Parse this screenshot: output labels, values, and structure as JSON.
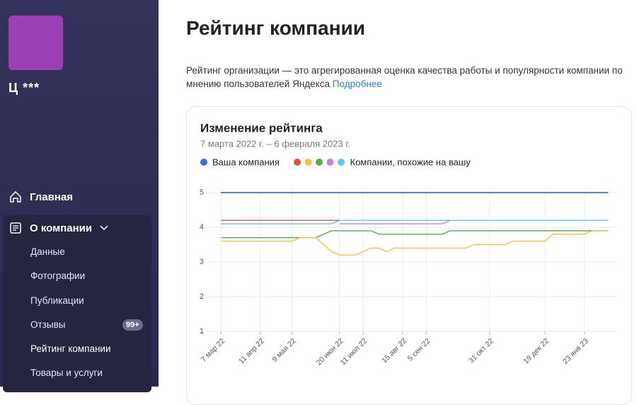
{
  "sidebar": {
    "company_name": "Ц ***",
    "nav": [
      "Главная",
      "О компании"
    ],
    "subnav": [
      "Данные",
      "Фотографии",
      "Публикации",
      "Отзывы",
      "Рейтинг компании",
      "Товары и услуги"
    ],
    "reviews_badge": "99+"
  },
  "header": {
    "title": "Рейтинг компании",
    "description": "Рейтинг организации — это агрегированная оценка качества работы и популярности компании по мнению пользователей Яндекса",
    "link": "Подробнее"
  },
  "chart_data": {
    "type": "line",
    "title": "Изменение рейтинга",
    "subtitle": "7 марта 2022 г. – 6 февраля 2023 г.",
    "similar_label": "Компании, похожие на вашу",
    "categories": [
      "7 мар 22",
      null,
      null,
      null,
      null,
      "11 апр 22",
      null,
      null,
      null,
      "9 мая 22",
      null,
      null,
      null,
      null,
      null,
      "20 июн 22",
      null,
      null,
      "11 июл 22",
      null,
      null,
      null,
      null,
      "15 авг 22",
      null,
      null,
      "5 сен 22",
      null,
      null,
      null,
      null,
      null,
      null,
      null,
      "31 окт 22",
      null,
      null,
      null,
      null,
      null,
      null,
      "19 дек 22",
      null,
      null,
      null,
      null,
      "23 янв 23",
      null,
      null,
      null
    ],
    "ylim": [
      1,
      5
    ],
    "yticks": [
      1,
      2,
      3,
      4,
      5
    ],
    "grid": true,
    "series": [
      {
        "name": "Ваша компания",
        "color": "#3b6fe0",
        "values": [
          5,
          5,
          5,
          5,
          5,
          5,
          5,
          5,
          5,
          5,
          5,
          5,
          5,
          5,
          5,
          5,
          5,
          5,
          5,
          5,
          5,
          5,
          5,
          5,
          5,
          5,
          5,
          5,
          5,
          5,
          5,
          5,
          5,
          5,
          5,
          5,
          5,
          5,
          5,
          5,
          5,
          5,
          5,
          5,
          5,
          5,
          5,
          5,
          5,
          5
        ]
      },
      {
        "color": "#e0504a",
        "values": [
          4.2,
          4.2,
          4.2,
          4.2,
          4.2,
          4.2,
          4.2,
          4.2,
          4.2,
          4.2,
          4.2,
          4.2,
          4.2,
          4.2,
          4.2,
          4.2,
          null,
          null,
          null,
          null,
          null,
          null,
          null,
          null,
          null,
          null,
          null,
          null,
          null,
          null,
          null,
          null,
          null,
          null,
          null,
          null,
          null,
          null,
          null,
          null,
          null,
          null,
          null,
          null,
          null,
          null,
          null,
          null,
          null,
          null
        ]
      },
      {
        "color": "#f5c242",
        "values": [
          3.6,
          3.6,
          3.6,
          3.6,
          3.6,
          3.6,
          3.6,
          3.6,
          3.6,
          3.6,
          3.7,
          3.7,
          3.7,
          3.5,
          3.3,
          3.2,
          3.2,
          3.2,
          3.3,
          3.4,
          3.4,
          3.3,
          3.4,
          3.4,
          3.4,
          3.4,
          3.4,
          3.4,
          3.4,
          3.4,
          3.4,
          3.4,
          3.5,
          3.5,
          3.5,
          3.5,
          3.5,
          3.6,
          3.6,
          3.6,
          3.6,
          3.6,
          3.8,
          3.8,
          3.8,
          3.8,
          3.8,
          3.9,
          3.9,
          3.9
        ]
      },
      {
        "color": "#4caf50",
        "values": [
          3.7,
          3.7,
          3.7,
          3.7,
          3.7,
          3.7,
          3.7,
          3.7,
          3.7,
          3.7,
          3.7,
          3.7,
          3.7,
          3.8,
          3.9,
          3.9,
          3.9,
          3.9,
          3.9,
          3.9,
          3.8,
          3.8,
          3.8,
          3.8,
          3.8,
          3.8,
          3.8,
          3.8,
          3.8,
          3.9,
          3.9,
          3.9,
          3.9,
          3.9,
          3.9,
          3.9,
          3.9,
          3.9,
          3.9,
          3.9,
          3.9,
          3.9,
          3.9,
          3.9,
          3.9,
          3.9,
          3.9,
          3.9,
          3.9,
          3.9
        ]
      },
      {
        "color": "#c77ee8",
        "values": [
          null,
          null,
          null,
          null,
          null,
          null,
          null,
          null,
          null,
          null,
          null,
          null,
          null,
          null,
          null,
          4.1,
          4.1,
          4.1,
          4.1,
          4.1,
          4.1,
          4.1,
          4.1,
          4.1,
          4.1,
          4.1,
          4.1,
          4.1,
          4.1,
          4.2,
          null,
          null,
          null,
          null,
          null,
          null,
          null,
          null,
          null,
          null,
          null,
          null,
          null,
          null,
          null,
          null,
          null,
          null,
          null,
          null
        ]
      },
      {
        "color": "#5bc8f0",
        "values": [
          4.1,
          4.1,
          4.1,
          4.1,
          4.1,
          4.1,
          4.1,
          4.1,
          4.1,
          4.1,
          4.1,
          4.1,
          4.1,
          4.1,
          4.1,
          4.2,
          4.2,
          4.2,
          4.2,
          4.2,
          4.2,
          4.2,
          4.2,
          4.2,
          4.2,
          4.2,
          4.2,
          4.2,
          4.2,
          4.2,
          4.2,
          4.2,
          4.2,
          4.2,
          4.2,
          4.2,
          4.2,
          4.2,
          4.2,
          4.2,
          4.2,
          4.2,
          4.2,
          4.2,
          4.2,
          4.2,
          4.2,
          4.2,
          4.2,
          4.2
        ]
      }
    ]
  }
}
